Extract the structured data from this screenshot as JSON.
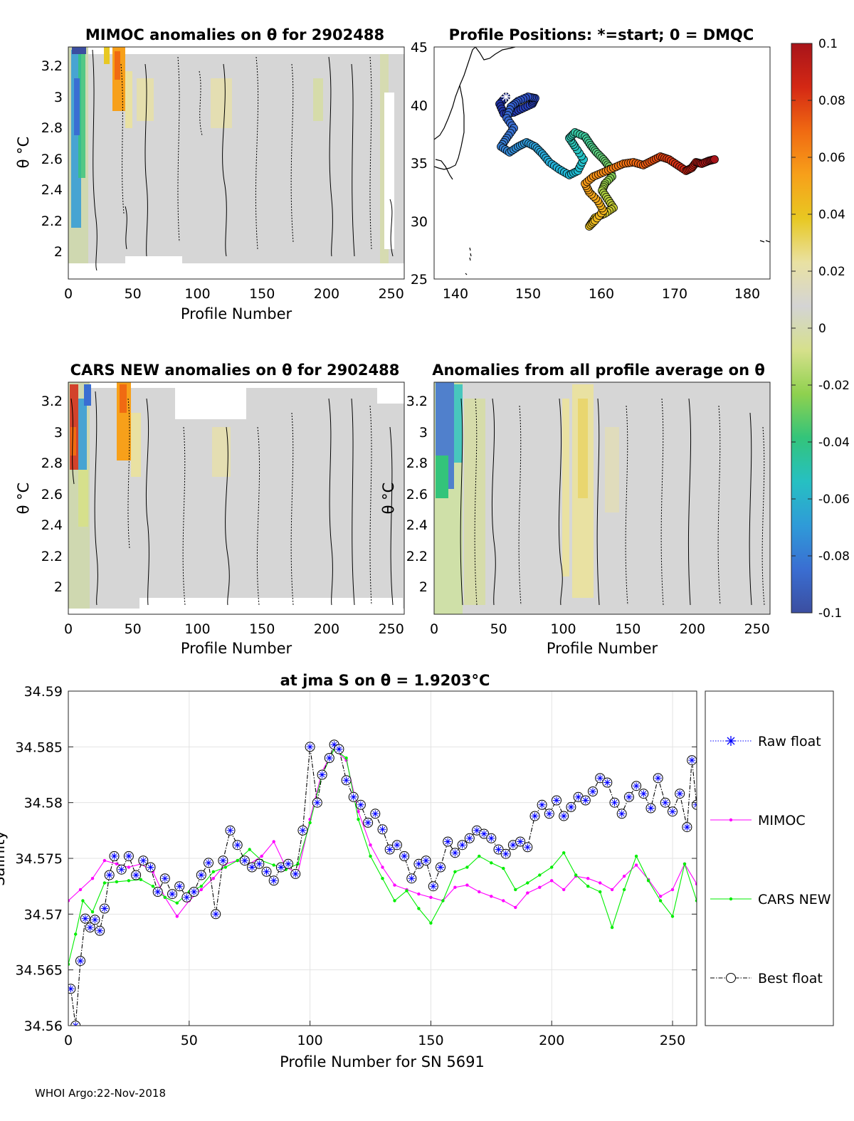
{
  "footer": "WHOI Argo:22-Nov-2018",
  "colorbar": {
    "ticks": [
      "0.1",
      "0.08",
      "0.06",
      "0.04",
      "0.02",
      "0",
      "-0.02",
      "-0.04",
      "-0.06",
      "-0.08",
      "-0.1"
    ],
    "range": [
      -0.1,
      0.1
    ],
    "colors": [
      "#3b4ea0",
      "#3a6ed2",
      "#2f9bd8",
      "#26c0c2",
      "#33c47a",
      "#8fd14e",
      "#d6e08c",
      "#d4d4d4",
      "#e9e1a2",
      "#e8c822",
      "#f7a01a",
      "#f06a12",
      "#d42814",
      "#a8141a"
    ]
  },
  "panels": {
    "mimoc": {
      "title": "MIMOC anomalies on θ  for 2902488",
      "xlabel": "Profile Number",
      "ylabel": "θ °C",
      "xticks": [
        "0",
        "50",
        "100",
        "150",
        "200",
        "250"
      ],
      "yticks": [
        "3.2",
        "3",
        "2.8",
        "2.6",
        "2.4",
        "2.2",
        "2"
      ]
    },
    "map": {
      "title": "Profile Positions: *=start; 0 = DMQC",
      "xticks": [
        "140",
        "150",
        "160",
        "170",
        "180"
      ],
      "yticks": [
        "45",
        "40",
        "35",
        "30",
        "25"
      ]
    },
    "cars": {
      "title": "CARS NEW anomalies on θ for 2902488",
      "xlabel": "Profile Number",
      "ylabel": "θ °C",
      "xticks": [
        "0",
        "50",
        "100",
        "150",
        "200",
        "250"
      ],
      "yticks": [
        "3.2",
        "3",
        "2.8",
        "2.6",
        "2.4",
        "2.2",
        "2"
      ]
    },
    "avg": {
      "title": "Anomalies from all profile average on θ",
      "xlabel": "Profile Number",
      "ylabel": "θ °C",
      "xticks": [
        "0",
        "50",
        "100",
        "150",
        "200",
        "250"
      ],
      "yticks": [
        "3.2",
        "3",
        "2.8",
        "2.6",
        "2.4",
        "2.2",
        "2"
      ]
    }
  },
  "chart_data": {
    "type": "line",
    "title": "at jma S on θ = 1.9203°C",
    "xlabel": "Profile Number for SN 5691",
    "ylabel": "Salinity",
    "xlim": [
      0,
      260
    ],
    "ylim": [
      34.56,
      34.59
    ],
    "xticks": [
      "0",
      "50",
      "100",
      "150",
      "200",
      "250"
    ],
    "yticks": [
      "34.59",
      "34.585",
      "34.58",
      "34.575",
      "34.57",
      "34.565",
      "34.56"
    ],
    "legend_position": "right-outside",
    "legend": [
      "Raw float",
      "MIMOC",
      "CARS NEW",
      "Best float"
    ],
    "series": [
      {
        "name": "MIMOC",
        "color": "#ff00ff",
        "x": [
          0,
          5,
          10,
          15,
          20,
          25,
          30,
          35,
          40,
          45,
          50,
          55,
          60,
          65,
          70,
          75,
          80,
          85,
          90,
          95,
          100,
          105,
          110,
          115,
          120,
          125,
          130,
          135,
          140,
          145,
          150,
          155,
          160,
          165,
          170,
          175,
          180,
          185,
          190,
          195,
          200,
          205,
          210,
          215,
          220,
          225,
          230,
          235,
          240,
          245,
          250,
          255,
          260
        ],
        "y": [
          34.5712,
          34.5722,
          34.5732,
          34.5748,
          34.5745,
          34.5742,
          34.5745,
          34.5738,
          34.5715,
          34.5698,
          34.5712,
          34.5722,
          34.5732,
          34.5745,
          34.5748,
          34.5745,
          34.5752,
          34.5765,
          34.5742,
          34.5737,
          34.5785,
          34.5828,
          34.5848,
          34.5838,
          34.5792,
          34.5762,
          34.5742,
          34.5726,
          34.5722,
          34.5718,
          34.5715,
          34.5712,
          34.5724,
          34.5726,
          34.572,
          34.5716,
          34.5712,
          34.5706,
          34.5719,
          34.5724,
          34.573,
          34.5722,
          34.5734,
          34.5732,
          34.5728,
          34.5722,
          34.5734,
          34.5744,
          34.5731,
          34.5716,
          34.5722,
          34.5745,
          34.5727
        ]
      },
      {
        "name": "CARS NEW",
        "color": "#00ee00",
        "x": [
          0,
          3,
          6,
          10,
          15,
          20,
          25,
          30,
          35,
          40,
          45,
          50,
          55,
          60,
          65,
          70,
          75,
          80,
          85,
          90,
          95,
          100,
          105,
          110,
          115,
          120,
          125,
          130,
          135,
          140,
          145,
          150,
          155,
          160,
          165,
          170,
          175,
          180,
          185,
          190,
          195,
          200,
          205,
          210,
          215,
          220,
          225,
          230,
          235,
          240,
          245,
          250,
          255,
          260
        ],
        "y": [
          34.5655,
          34.5682,
          34.5712,
          34.5702,
          34.5728,
          34.5729,
          34.573,
          34.5731,
          34.5725,
          34.5715,
          34.571,
          34.572,
          34.5725,
          34.5738,
          34.5742,
          34.5748,
          34.5758,
          34.5748,
          34.5744,
          34.574,
          34.5745,
          34.5782,
          34.5825,
          34.5848,
          34.584,
          34.5785,
          34.5752,
          34.5732,
          34.5712,
          34.5721,
          34.5705,
          34.5692,
          34.5712,
          34.5738,
          34.5742,
          34.5752,
          34.5746,
          34.5741,
          34.5722,
          34.5728,
          34.5735,
          34.5742,
          34.5755,
          34.5735,
          34.5725,
          34.572,
          34.5688,
          34.5722,
          34.5752,
          34.573,
          34.5712,
          34.5698,
          34.5745,
          34.5712
        ]
      },
      {
        "name": "Best float",
        "color": "#000000",
        "x": [
          1,
          3,
          5,
          7,
          9,
          11,
          13,
          15,
          17,
          19,
          22,
          25,
          28,
          31,
          34,
          37,
          40,
          43,
          46,
          49,
          52,
          55,
          58,
          61,
          64,
          67,
          70,
          73,
          76,
          79,
          82,
          85,
          88,
          91,
          94,
          97,
          100,
          103,
          105,
          108,
          110,
          112,
          115,
          118,
          121,
          124,
          127,
          130,
          133,
          136,
          139,
          142,
          145,
          148,
          151,
          154,
          157,
          160,
          163,
          166,
          169,
          172,
          175,
          178,
          181,
          184,
          187,
          190,
          193,
          196,
          199,
          202,
          205,
          208,
          211,
          214,
          217,
          220,
          223,
          226,
          229,
          232,
          235,
          238,
          241,
          244,
          247,
          250,
          253,
          256,
          258,
          260
        ],
        "y": [
          34.5633,
          34.56,
          34.5658,
          34.5696,
          34.5688,
          34.5695,
          34.5685,
          34.5705,
          34.5735,
          34.5752,
          34.574,
          34.5752,
          34.5735,
          34.5748,
          34.5742,
          34.572,
          34.5732,
          34.5718,
          34.5725,
          34.5715,
          34.572,
          34.5735,
          34.5746,
          34.57,
          34.5748,
          34.5775,
          34.5762,
          34.5748,
          34.5742,
          34.5745,
          34.5738,
          34.573,
          34.5742,
          34.5745,
          34.5736,
          34.5775,
          34.585,
          34.58,
          34.5825,
          34.584,
          34.5852,
          34.5848,
          34.582,
          34.5805,
          34.5798,
          34.5782,
          34.579,
          34.5776,
          34.5758,
          34.5762,
          34.5752,
          34.5732,
          34.5745,
          34.5748,
          34.5725,
          34.5742,
          34.5765,
          34.5755,
          34.5762,
          34.5768,
          34.5775,
          34.5772,
          34.5768,
          34.5758,
          34.5754,
          34.5762,
          34.5765,
          34.576,
          34.5788,
          34.5798,
          34.579,
          34.5802,
          34.5788,
          34.5796,
          34.5805,
          34.5802,
          34.581,
          34.5822,
          34.5818,
          34.58,
          34.579,
          34.5805,
          34.5815,
          34.5808,
          34.5795,
          34.5822,
          34.58,
          34.5792,
          34.5808,
          34.5778,
          34.5838,
          34.5798
        ]
      }
    ]
  }
}
